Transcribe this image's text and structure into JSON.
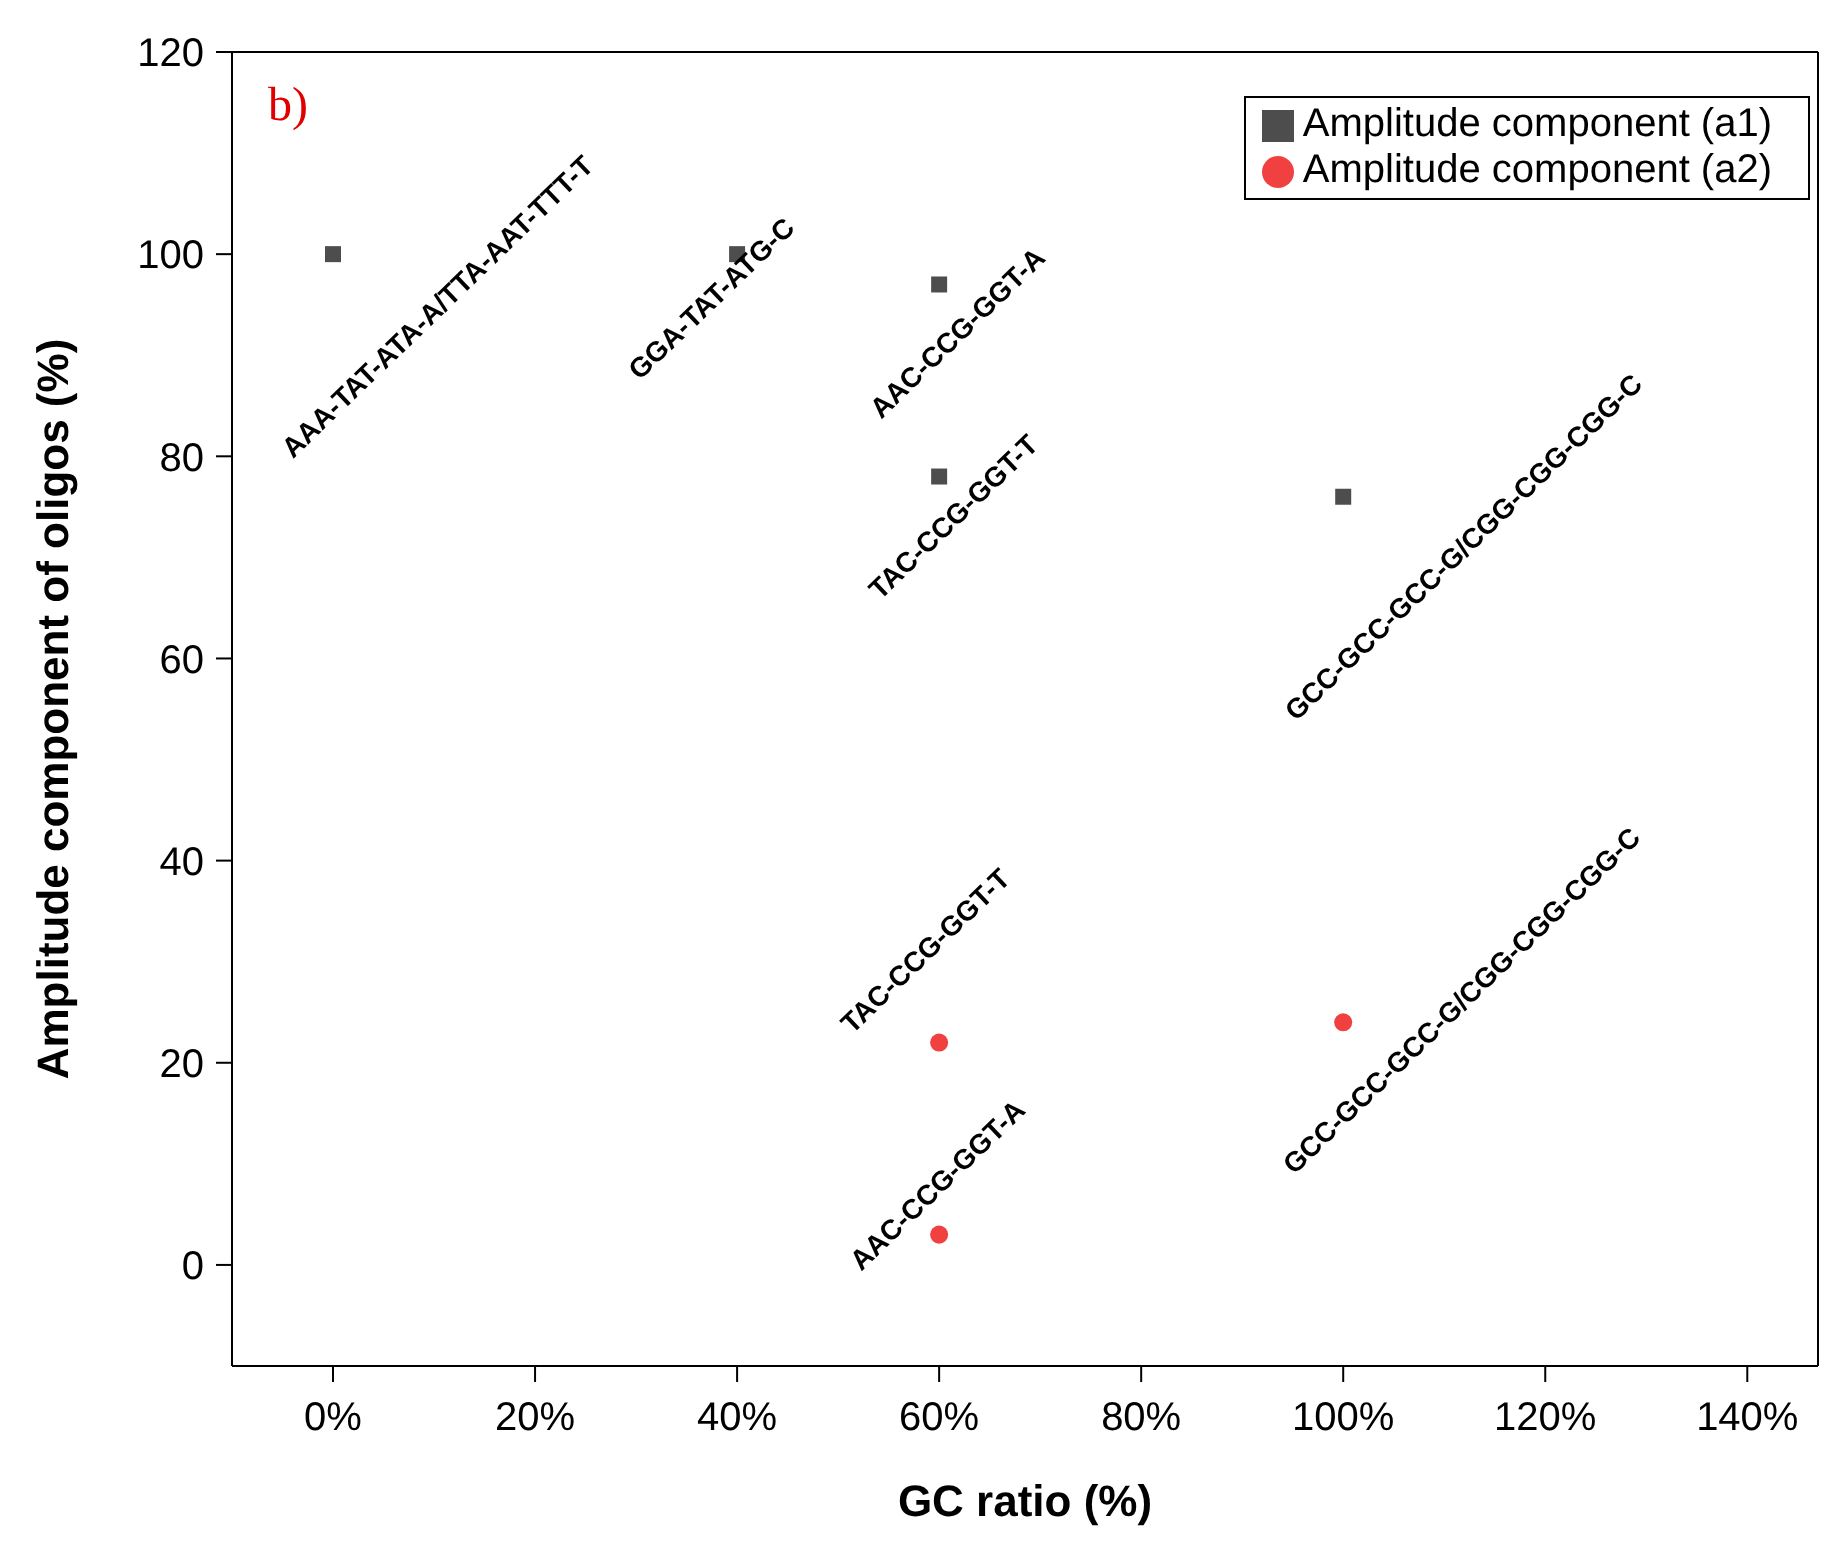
{
  "chart_data": {
    "type": "scatter",
    "xlabel": "GC ratio (%)",
    "ylabel": "Amplitude component of oligos (%)",
    "xlim": [
      -10,
      147
    ],
    "ylim": [
      -10,
      120
    ],
    "xticks": [
      {
        "value": 0,
        "label": "0%"
      },
      {
        "value": 20,
        "label": "20%"
      },
      {
        "value": 40,
        "label": "40%"
      },
      {
        "value": 60,
        "label": "60%"
      },
      {
        "value": 80,
        "label": "80%"
      },
      {
        "value": 100,
        "label": "100%"
      },
      {
        "value": 120,
        "label": "120%"
      },
      {
        "value": 140,
        "label": "140%"
      }
    ],
    "yticks": [
      0,
      20,
      40,
      60,
      80,
      100,
      120
    ],
    "grid": false,
    "legend": "top right",
    "series": [
      {
        "name": "Amplitude component (a1)",
        "color": "#4d4d4d",
        "marker": "square",
        "x": [
          0,
          40,
          60,
          60,
          100
        ],
        "values": [
          100,
          100,
          97,
          78,
          76
        ]
      },
      {
        "name": "Amplitude component (a2)",
        "color": "#f04040",
        "marker": "circle",
        "x": [
          60,
          60,
          100
        ],
        "values": [
          22,
          3,
          24
        ]
      }
    ],
    "annotations": [
      "b)",
      {
        "text": "AAA-TAT-ATA-A/TTA-AAT-TTT-T",
        "x": 0,
        "y": 100
      },
      {
        "text": "GGA-TAT-ATG-C",
        "x": 40,
        "y": 100
      },
      {
        "text": "AAC-CCG-GGT-A",
        "x": 60,
        "y": 97
      },
      {
        "text": "TAC-CCG-GGT-T",
        "x": 60,
        "y": 78
      },
      {
        "text": "GCC-GCC-GCC-G/CGG-CGG-CGG-C",
        "x": 100,
        "y": 76
      },
      {
        "text": "TAC-CCG-GGT-T",
        "x": 60,
        "y": 22
      },
      {
        "text": "AAC-CCG-GGT-A",
        "x": 60,
        "y": 3
      },
      {
        "text": "GCC-GCC-GCC-G/CGG-CGG-CGG-C",
        "x": 100,
        "y": 24
      }
    ]
  }
}
